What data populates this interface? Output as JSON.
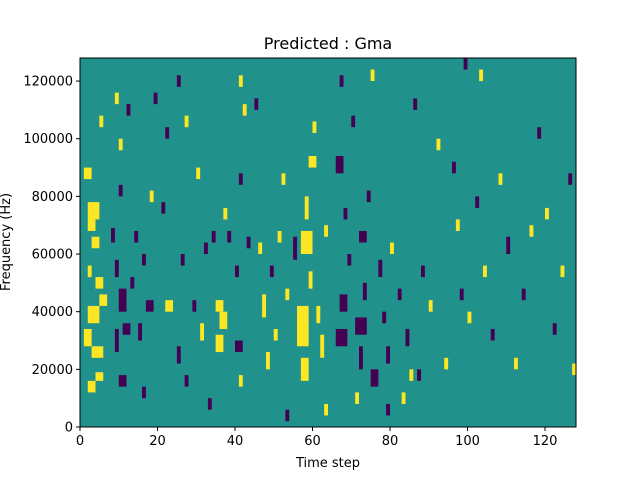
{
  "chart_data": {
    "type": "heatmap",
    "title": "Predicted : Gma",
    "xlabel": "Time step",
    "ylabel": "Frequency (Hz)",
    "xlim": [
      0,
      128
    ],
    "ylim": [
      0,
      128000
    ],
    "xticks": [
      0,
      20,
      40,
      60,
      80,
      100,
      120
    ],
    "xtick_labels": [
      "0",
      "20",
      "40",
      "60",
      "80",
      "100",
      "120"
    ],
    "yticks": [
      0,
      20000,
      40000,
      60000,
      80000,
      100000,
      120000
    ],
    "ytick_labels": [
      "0",
      "20000",
      "40000",
      "60000",
      "80000",
      "100000",
      "120000"
    ],
    "grid": false,
    "colormap": "viridis",
    "background_value": 0.5,
    "colors": {
      "low": "#440154",
      "mid": "#21918c",
      "high": "#fde725"
    },
    "value_levels": [
      0,
      0.5,
      1
    ],
    "n_time_steps": 128,
    "n_frequency_bins": 128,
    "frequency_bin_width_hz": 1000,
    "cells_description": "Each cell is [time_step_start, frequency_start_hz, time_steps, frequency_span_hz, value]",
    "cells": [
      [
        2,
        72000,
        3,
        6000,
        1
      ],
      [
        2,
        68000,
        2,
        4000,
        1
      ],
      [
        3,
        62000,
        2,
        4000,
        1
      ],
      [
        2,
        52000,
        1,
        4000,
        1
      ],
      [
        4,
        48000,
        2,
        4000,
        1
      ],
      [
        5,
        42000,
        2,
        4000,
        1
      ],
      [
        2,
        36000,
        3,
        6000,
        1
      ],
      [
        1,
        28000,
        2,
        6000,
        1
      ],
      [
        3,
        24000,
        3,
        4000,
        1
      ],
      [
        2,
        12000,
        2,
        4000,
        1
      ],
      [
        4,
        16000,
        2,
        3000,
        1
      ],
      [
        1,
        86000,
        2,
        4000,
        1
      ],
      [
        5,
        104000,
        1,
        4000,
        1
      ],
      [
        9,
        112000,
        1,
        4000,
        1
      ],
      [
        10,
        96000,
        1,
        4000,
        1
      ],
      [
        8,
        64000,
        1,
        5000,
        0
      ],
      [
        9,
        52000,
        1,
        6000,
        0
      ],
      [
        10,
        40000,
        2,
        8000,
        0
      ],
      [
        11,
        32000,
        2,
        4000,
        0
      ],
      [
        9,
        26000,
        1,
        8000,
        0
      ],
      [
        10,
        14000,
        2,
        4000,
        0
      ],
      [
        12,
        108000,
        1,
        4000,
        0
      ],
      [
        10,
        80000,
        1,
        4000,
        0
      ],
      [
        14,
        64000,
        1,
        4000,
        0
      ],
      [
        13,
        48000,
        1,
        4000,
        0
      ],
      [
        15,
        30000,
        1,
        6000,
        0
      ],
      [
        16,
        10000,
        1,
        4000,
        0
      ],
      [
        17,
        40000,
        2,
        4000,
        0
      ],
      [
        16,
        56000,
        1,
        4000,
        0
      ],
      [
        18,
        78000,
        1,
        4000,
        1
      ],
      [
        21,
        74000,
        1,
        4000,
        0
      ],
      [
        22,
        100000,
        1,
        4000,
        0
      ],
      [
        22,
        40000,
        2,
        4000,
        1
      ],
      [
        25,
        118000,
        1,
        4000,
        0
      ],
      [
        26,
        56000,
        1,
        4000,
        0
      ],
      [
        25,
        22000,
        1,
        6000,
        0
      ],
      [
        27,
        14000,
        1,
        4000,
        0
      ],
      [
        29,
        40000,
        1,
        4000,
        0
      ],
      [
        30,
        86000,
        1,
        4000,
        1
      ],
      [
        31,
        30000,
        1,
        6000,
        1
      ],
      [
        32,
        60000,
        1,
        4000,
        0
      ],
      [
        34,
        64000,
        1,
        4000,
        0
      ],
      [
        35,
        26000,
        2,
        6000,
        1
      ],
      [
        35,
        40000,
        2,
        4000,
        1
      ],
      [
        36,
        34000,
        2,
        6000,
        1
      ],
      [
        37,
        72000,
        1,
        4000,
        1
      ],
      [
        38,
        64000,
        1,
        4000,
        0
      ],
      [
        40,
        52000,
        1,
        4000,
        0
      ],
      [
        42,
        108000,
        1,
        4000,
        1
      ],
      [
        41,
        84000,
        1,
        4000,
        0
      ],
      [
        40,
        26000,
        2,
        4000,
        0
      ],
      [
        41,
        14000,
        1,
        4000,
        1
      ],
      [
        43,
        62000,
        1,
        4000,
        0
      ],
      [
        46,
        60000,
        1,
        4000,
        1
      ],
      [
        47,
        38000,
        1,
        8000,
        1
      ],
      [
        48,
        20000,
        1,
        6000,
        1
      ],
      [
        49,
        52000,
        1,
        4000,
        0
      ],
      [
        50,
        30000,
        1,
        4000,
        1
      ],
      [
        51,
        64000,
        1,
        4000,
        1
      ],
      [
        52,
        84000,
        1,
        4000,
        1
      ],
      [
        53,
        44000,
        1,
        4000,
        1
      ],
      [
        55,
        58000,
        1,
        8000,
        0
      ],
      [
        56,
        28000,
        3,
        14000,
        1
      ],
      [
        57,
        16000,
        2,
        8000,
        1
      ],
      [
        57,
        60000,
        3,
        8000,
        1
      ],
      [
        58,
        72000,
        1,
        8000,
        1
      ],
      [
        59,
        48000,
        1,
        6000,
        1
      ],
      [
        59,
        90000,
        2,
        4000,
        1
      ],
      [
        60,
        102000,
        1,
        4000,
        1
      ],
      [
        61,
        36000,
        1,
        6000,
        1
      ],
      [
        62,
        24000,
        1,
        8000,
        1
      ],
      [
        63,
        66000,
        1,
        4000,
        1
      ],
      [
        66,
        28000,
        3,
        6000,
        0
      ],
      [
        67,
        40000,
        2,
        6000,
        0
      ],
      [
        68,
        72000,
        1,
        4000,
        0
      ],
      [
        66,
        88000,
        2,
        6000,
        0
      ],
      [
        69,
        56000,
        1,
        4000,
        0
      ],
      [
        70,
        104000,
        1,
        4000,
        0
      ],
      [
        71,
        32000,
        3,
        6000,
        0
      ],
      [
        72,
        20000,
        1,
        8000,
        0
      ],
      [
        73,
        44000,
        1,
        6000,
        0
      ],
      [
        72,
        64000,
        2,
        4000,
        0
      ],
      [
        74,
        78000,
        1,
        4000,
        0
      ],
      [
        75,
        14000,
        2,
        6000,
        0
      ],
      [
        77,
        52000,
        1,
        6000,
        0
      ],
      [
        78,
        36000,
        1,
        4000,
        0
      ],
      [
        79,
        22000,
        1,
        6000,
        0
      ],
      [
        80,
        60000,
        1,
        4000,
        1
      ],
      [
        82,
        44000,
        1,
        4000,
        0
      ],
      [
        84,
        28000,
        1,
        6000,
        0
      ],
      [
        85,
        16000,
        1,
        4000,
        1
      ],
      [
        86,
        110000,
        1,
        4000,
        0
      ],
      [
        88,
        52000,
        1,
        4000,
        0
      ],
      [
        90,
        40000,
        1,
        4000,
        1
      ],
      [
        92,
        96000,
        1,
        4000,
        1
      ],
      [
        94,
        20000,
        1,
        4000,
        1
      ],
      [
        96,
        88000,
        1,
        4000,
        0
      ],
      [
        97,
        68000,
        1,
        4000,
        1
      ],
      [
        98,
        44000,
        1,
        4000,
        0
      ],
      [
        100,
        36000,
        1,
        4000,
        1
      ],
      [
        102,
        76000,
        1,
        4000,
        0
      ],
      [
        104,
        52000,
        1,
        4000,
        1
      ],
      [
        106,
        30000,
        1,
        4000,
        0
      ],
      [
        108,
        84000,
        1,
        4000,
        1
      ],
      [
        110,
        60000,
        1,
        6000,
        0
      ],
      [
        112,
        20000,
        1,
        4000,
        1
      ],
      [
        114,
        44000,
        1,
        4000,
        0
      ],
      [
        116,
        66000,
        1,
        4000,
        1
      ],
      [
        118,
        100000,
        1,
        4000,
        0
      ],
      [
        120,
        72000,
        1,
        4000,
        1
      ],
      [
        122,
        32000,
        1,
        4000,
        0
      ],
      [
        124,
        52000,
        1,
        4000,
        1
      ],
      [
        126,
        84000,
        1,
        4000,
        0
      ],
      [
        127,
        18000,
        1,
        4000,
        1
      ],
      [
        103,
        120000,
        1,
        4000,
        1
      ],
      [
        99,
        124000,
        1,
        4000,
        0
      ],
      [
        87,
        16000,
        1,
        4000,
        0
      ],
      [
        83,
        8000,
        1,
        4000,
        1
      ],
      [
        79,
        4000,
        1,
        4000,
        0
      ],
      [
        75,
        120000,
        1,
        4000,
        1
      ],
      [
        71,
        8000,
        1,
        4000,
        1
      ],
      [
        67,
        118000,
        1,
        4000,
        0
      ],
      [
        63,
        4000,
        1,
        4000,
        1
      ],
      [
        53,
        2000,
        1,
        4000,
        0
      ],
      [
        45,
        110000,
        1,
        4000,
        0
      ],
      [
        41,
        118000,
        1,
        4000,
        1
      ],
      [
        33,
        6000,
        1,
        4000,
        0
      ],
      [
        27,
        104000,
        1,
        4000,
        1
      ],
      [
        19,
        112000,
        1,
        4000,
        0
      ]
    ]
  }
}
